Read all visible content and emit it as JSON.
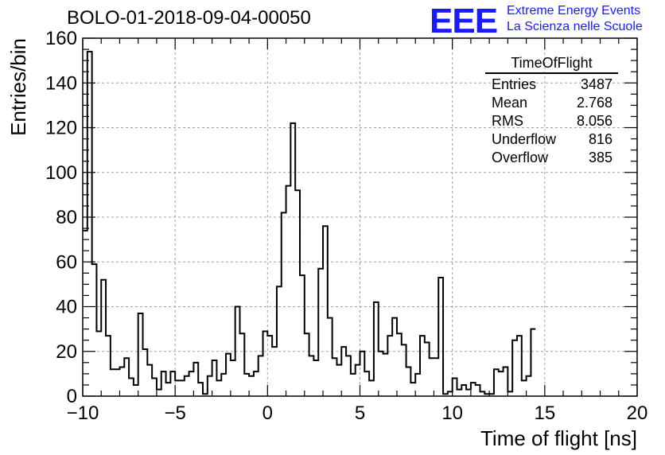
{
  "header": {
    "title": "BOLO-01-2018-09-04-00050",
    "logo": "EEE",
    "logo_line1": "Extreme Energy Events",
    "logo_line2": "La Scienza nelle Scuole"
  },
  "stats_box": {
    "title": "TimeOfFlight",
    "rows": [
      {
        "label": "Entries",
        "value": "3487"
      },
      {
        "label": "Mean",
        "value": "2.768"
      },
      {
        "label": "RMS",
        "value": "8.056"
      },
      {
        "label": "Underflow",
        "value": "816"
      },
      {
        "label": "Overflow",
        "value": "385"
      }
    ]
  },
  "colors": {
    "histogram": "#000000",
    "grid": "#a0a0a0",
    "logo": "#1a1aff"
  },
  "chart_data": {
    "type": "histogram",
    "title": "BOLO-01-2018-09-04-00050",
    "xlabel": "Time of flight [ns]",
    "ylabel": "Entries/bin",
    "xlim": [
      -10,
      20
    ],
    "ylim": [
      0,
      160
    ],
    "xticks": [
      -10,
      -5,
      0,
      5,
      10,
      15,
      20
    ],
    "xtick_labels": [
      "−10",
      "−5",
      "0",
      "5",
      "10",
      "15",
      "20"
    ],
    "yticks": [
      0,
      20,
      40,
      60,
      80,
      100,
      120,
      140,
      160
    ],
    "grid": true,
    "bin_edges_start": -10,
    "bin_width": 0.25,
    "values": [
      74,
      154,
      59,
      29,
      52,
      27,
      12,
      12,
      13,
      17,
      8,
      5,
      37,
      21,
      14,
      8,
      3,
      11,
      6,
      11,
      7,
      7,
      9,
      11,
      15,
      6,
      1,
      9,
      16,
      7,
      10,
      19,
      16,
      40,
      28,
      10,
      9,
      11,
      18,
      29,
      27,
      22,
      49,
      82,
      94,
      122,
      92,
      54,
      28,
      18,
      16,
      57,
      76,
      35,
      17,
      14,
      22,
      18,
      10,
      14,
      20,
      11,
      7,
      42,
      20,
      19,
      27,
      35,
      28,
      23,
      13,
      6,
      10,
      27,
      24,
      17,
      17,
      53,
      1,
      2,
      8,
      3,
      5,
      3,
      6,
      5,
      2,
      1,
      1,
      12,
      11,
      13,
      2,
      25,
      27,
      7,
      9,
      30
    ]
  }
}
